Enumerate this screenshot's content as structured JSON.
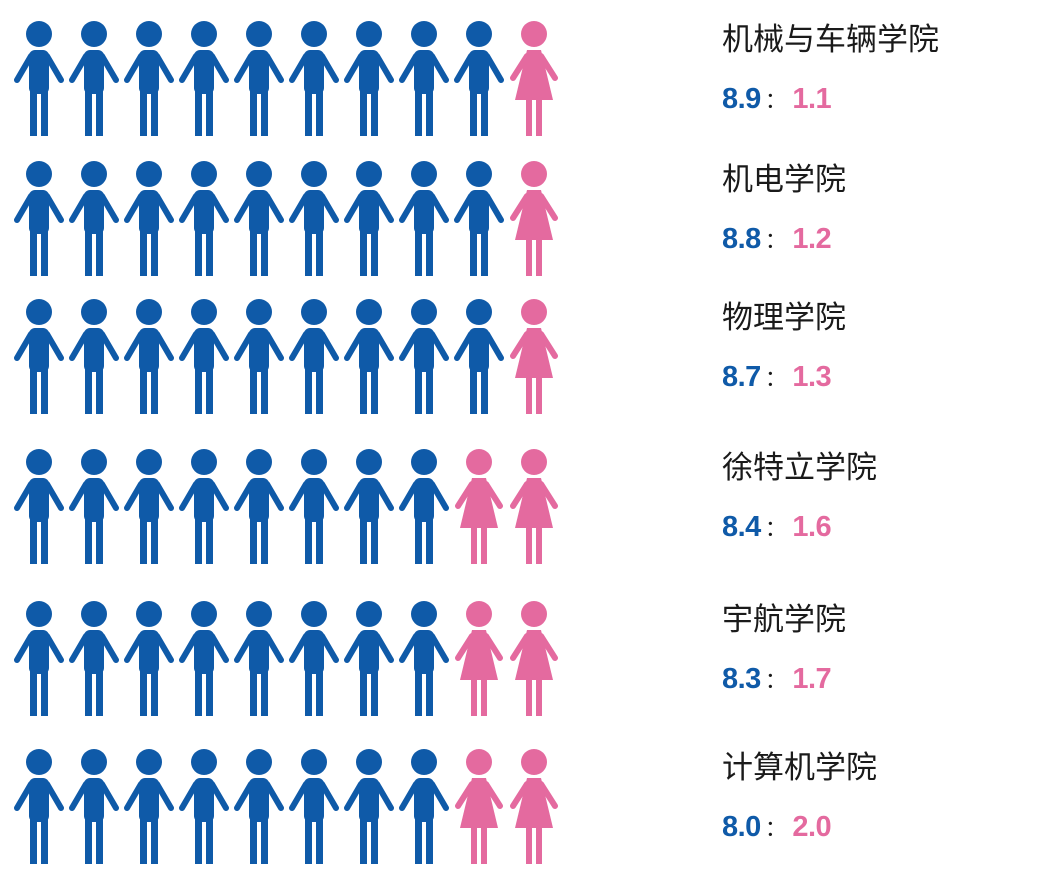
{
  "chart_data": {
    "type": "pictograph",
    "colors": {
      "male": "#0f5aa8",
      "female": "#e46a9f"
    },
    "icons": {
      "male": "male-person-icon",
      "female": "female-person-icon"
    },
    "rows": [
      {
        "college": "机械与车辆学院",
        "male": "8.9",
        "female": "1.1",
        "male_icons": 9,
        "female_icons": 1
      },
      {
        "college": "机电学院",
        "male": "8.8",
        "female": "1.2",
        "male_icons": 9,
        "female_icons": 1
      },
      {
        "college": "物理学院",
        "male": "8.7",
        "female": "1.3",
        "male_icons": 9,
        "female_icons": 1
      },
      {
        "college": "徐特立学院",
        "male": "8.4",
        "female": "1.6",
        "male_icons": 8,
        "female_icons": 2
      },
      {
        "college": "宇航学院",
        "male": "8.3",
        "female": "1.7",
        "male_icons": 8,
        "female_icons": 2
      },
      {
        "college": "计算机学院",
        "male": "8.0",
        "female": "2.0",
        "male_icons": 8,
        "female_icons": 2
      }
    ],
    "separator": "："
  }
}
